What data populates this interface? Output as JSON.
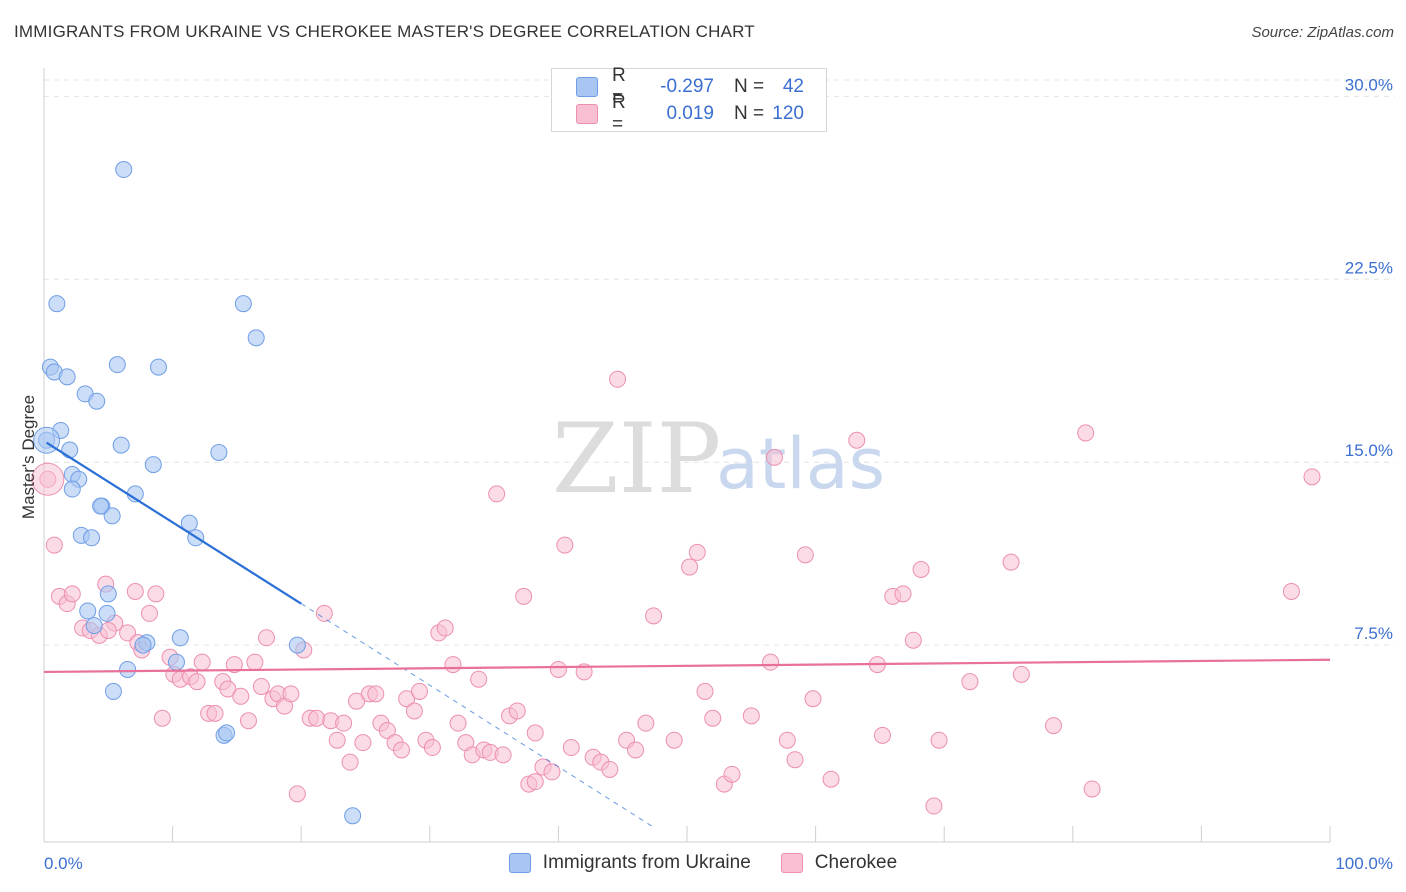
{
  "header": {
    "title": "IMMIGRANTS FROM UKRAINE VS CHEROKEE MASTER'S DEGREE CORRELATION CHART",
    "source": "Source: ZipAtlas.com"
  },
  "watermark": {
    "zip": "ZIP",
    "atlas": "atlas"
  },
  "legend": {
    "rows": [
      {
        "r_label": "R =",
        "r_value": "-0.297",
        "n_label": "N =",
        "n_value": "42",
        "color": "#a9c6f2",
        "border": "#6f9ee6"
      },
      {
        "r_label": "R =",
        "r_value": "0.019",
        "n_label": "N =",
        "n_value": "120",
        "color": "#f7bfd1",
        "border": "#ec8fb0"
      }
    ]
  },
  "bottom_legend": {
    "series1": "Immigrants from Ukraine",
    "series2": "Cherokee"
  },
  "colors": {
    "blue_fill": "#a9c6f2",
    "blue_stroke": "#6f9ee6",
    "blue_line": "#2a6fd6",
    "pink_fill": "#f7bfd1",
    "pink_stroke": "#ec8fb0",
    "pink_line": "#e8709a",
    "grid": "#e3e3e3",
    "axis_text": "#3b6fd1"
  },
  "chart_data": {
    "type": "scatter",
    "title": "IMMIGRANTS FROM UKRAINE VS CHEROKEE MASTER'S DEGREE CORRELATION CHART",
    "xlabel": "",
    "ylabel": "Master's Degree",
    "xlim": [
      0,
      100
    ],
    "ylim": [
      0,
      31
    ],
    "y_ticks": [
      {
        "value": 7.5,
        "label": "7.5%"
      },
      {
        "value": 15.0,
        "label": "15.0%"
      },
      {
        "value": 22.5,
        "label": "22.5%"
      },
      {
        "value": 30.0,
        "label": "30.0%"
      }
    ],
    "x_end_labels": {
      "min": "0.0%",
      "max": "100.0%"
    },
    "series": [
      {
        "name": "Immigrants from Ukraine",
        "R": -0.297,
        "N": 42,
        "trend": {
          "x_start": 0.2,
          "y_start": 15.8,
          "x_solid_end": 20.0,
          "y_solid_end": 9.2,
          "x_dash_end": 47.5,
          "y_dash_end": 0.0
        },
        "points": [
          [
            6.2,
            27.0
          ],
          [
            1.0,
            21.5
          ],
          [
            15.5,
            21.5
          ],
          [
            16.5,
            20.1
          ],
          [
            0.5,
            18.9
          ],
          [
            5.7,
            19.0
          ],
          [
            8.9,
            18.9
          ],
          [
            0.8,
            18.7
          ],
          [
            1.8,
            18.5
          ],
          [
            3.2,
            17.8
          ],
          [
            4.1,
            17.5
          ],
          [
            0.2,
            15.9
          ],
          [
            1.3,
            16.3
          ],
          [
            2.0,
            15.5
          ],
          [
            6.0,
            15.7
          ],
          [
            8.5,
            14.9
          ],
          [
            13.6,
            15.4
          ],
          [
            2.2,
            14.5
          ],
          [
            2.7,
            14.3
          ],
          [
            2.2,
            13.9
          ],
          [
            7.1,
            13.7
          ],
          [
            4.5,
            13.2
          ],
          [
            4.4,
            13.2
          ],
          [
            5.3,
            12.8
          ],
          [
            11.3,
            12.5
          ],
          [
            11.8,
            11.9
          ],
          [
            2.9,
            12.0
          ],
          [
            3.7,
            11.9
          ],
          [
            3.4,
            8.9
          ],
          [
            4.9,
            8.8
          ],
          [
            5.0,
            9.6
          ],
          [
            3.9,
            8.3
          ],
          [
            8.0,
            7.6
          ],
          [
            7.7,
            7.5
          ],
          [
            10.6,
            7.8
          ],
          [
            19.7,
            7.5
          ],
          [
            10.3,
            6.8
          ],
          [
            6.5,
            6.5
          ],
          [
            5.4,
            5.6
          ],
          [
            14.0,
            3.8
          ],
          [
            14.2,
            3.9
          ],
          [
            24.0,
            0.5
          ]
        ]
      },
      {
        "name": "Cherokee",
        "R": 0.019,
        "N": 120,
        "trend": {
          "x_start": 0.0,
          "y_start": 6.4,
          "x_end": 100.0,
          "y_end": 6.9
        },
        "points": [
          [
            0.3,
            14.3
          ],
          [
            0.8,
            11.6
          ],
          [
            1.2,
            9.5
          ],
          [
            1.8,
            9.2
          ],
          [
            2.2,
            9.6
          ],
          [
            3.0,
            8.2
          ],
          [
            3.6,
            8.1
          ],
          [
            4.3,
            7.9
          ],
          [
            4.8,
            10.0
          ],
          [
            5.5,
            8.4
          ],
          [
            5.0,
            8.1
          ],
          [
            7.1,
            9.7
          ],
          [
            6.5,
            8.0
          ],
          [
            7.3,
            7.6
          ],
          [
            7.6,
            7.3
          ],
          [
            8.2,
            8.8
          ],
          [
            8.7,
            9.6
          ],
          [
            9.2,
            4.5
          ],
          [
            9.8,
            7.0
          ],
          [
            10.1,
            6.3
          ],
          [
            10.6,
            6.1
          ],
          [
            11.4,
            6.2
          ],
          [
            11.9,
            6.0
          ],
          [
            12.3,
            6.8
          ],
          [
            12.8,
            4.7
          ],
          [
            13.3,
            4.7
          ],
          [
            13.9,
            6.0
          ],
          [
            14.3,
            5.7
          ],
          [
            14.8,
            6.7
          ],
          [
            15.3,
            5.4
          ],
          [
            15.9,
            4.4
          ],
          [
            16.4,
            6.8
          ],
          [
            16.9,
            5.8
          ],
          [
            17.3,
            7.8
          ],
          [
            17.8,
            5.3
          ],
          [
            18.2,
            5.5
          ],
          [
            18.7,
            5.0
          ],
          [
            19.2,
            5.5
          ],
          [
            19.7,
            1.4
          ],
          [
            20.2,
            7.3
          ],
          [
            20.7,
            4.5
          ],
          [
            21.2,
            4.5
          ],
          [
            21.8,
            8.8
          ],
          [
            22.3,
            4.4
          ],
          [
            22.8,
            3.6
          ],
          [
            23.3,
            4.3
          ],
          [
            23.8,
            2.7
          ],
          [
            24.3,
            5.2
          ],
          [
            24.8,
            3.5
          ],
          [
            25.3,
            5.5
          ],
          [
            25.8,
            5.5
          ],
          [
            26.2,
            4.3
          ],
          [
            26.7,
            4.0
          ],
          [
            27.3,
            3.5
          ],
          [
            27.8,
            3.2
          ],
          [
            28.2,
            5.3
          ],
          [
            28.8,
            4.8
          ],
          [
            29.2,
            5.6
          ],
          [
            29.7,
            3.6
          ],
          [
            30.2,
            3.3
          ],
          [
            30.7,
            8.0
          ],
          [
            31.2,
            8.2
          ],
          [
            31.8,
            6.7
          ],
          [
            32.2,
            4.3
          ],
          [
            32.8,
            3.5
          ],
          [
            33.3,
            3.0
          ],
          [
            33.8,
            6.1
          ],
          [
            34.2,
            3.2
          ],
          [
            34.7,
            3.1
          ],
          [
            35.2,
            13.7
          ],
          [
            35.7,
            3.0
          ],
          [
            36.2,
            4.6
          ],
          [
            36.8,
            4.8
          ],
          [
            37.3,
            9.5
          ],
          [
            37.7,
            1.8
          ],
          [
            38.2,
            3.9
          ],
          [
            38.8,
            2.5
          ],
          [
            38.2,
            1.9
          ],
          [
            39.5,
            2.3
          ],
          [
            40.0,
            6.5
          ],
          [
            40.5,
            11.6
          ],
          [
            41.0,
            3.3
          ],
          [
            42.0,
            6.4
          ],
          [
            42.7,
            2.9
          ],
          [
            43.3,
            2.7
          ],
          [
            44.0,
            2.4
          ],
          [
            44.6,
            18.4
          ],
          [
            45.3,
            3.6
          ],
          [
            46.0,
            3.2
          ],
          [
            46.8,
            4.3
          ],
          [
            47.4,
            8.7
          ],
          [
            49.0,
            3.6
          ],
          [
            50.2,
            10.7
          ],
          [
            50.8,
            11.3
          ],
          [
            51.4,
            5.6
          ],
          [
            52.0,
            4.5
          ],
          [
            52.9,
            1.8
          ],
          [
            53.5,
            2.2
          ],
          [
            55.0,
            4.6
          ],
          [
            56.5,
            6.8
          ],
          [
            56.8,
            15.2
          ],
          [
            57.8,
            3.6
          ],
          [
            58.4,
            2.8
          ],
          [
            59.2,
            11.2
          ],
          [
            59.8,
            5.3
          ],
          [
            61.2,
            2.0
          ],
          [
            63.2,
            15.9
          ],
          [
            64.8,
            6.7
          ],
          [
            65.2,
            3.8
          ],
          [
            66.0,
            9.5
          ],
          [
            66.8,
            9.6
          ],
          [
            67.6,
            7.7
          ],
          [
            68.2,
            10.6
          ],
          [
            69.2,
            0.9
          ],
          [
            69.6,
            3.6
          ],
          [
            72.0,
            6.0
          ],
          [
            75.2,
            10.9
          ],
          [
            76.0,
            6.3
          ],
          [
            78.5,
            4.2
          ],
          [
            81.0,
            16.2
          ],
          [
            81.5,
            1.6
          ],
          [
            97.0,
            9.7
          ],
          [
            98.6,
            14.4
          ]
        ]
      }
    ]
  }
}
